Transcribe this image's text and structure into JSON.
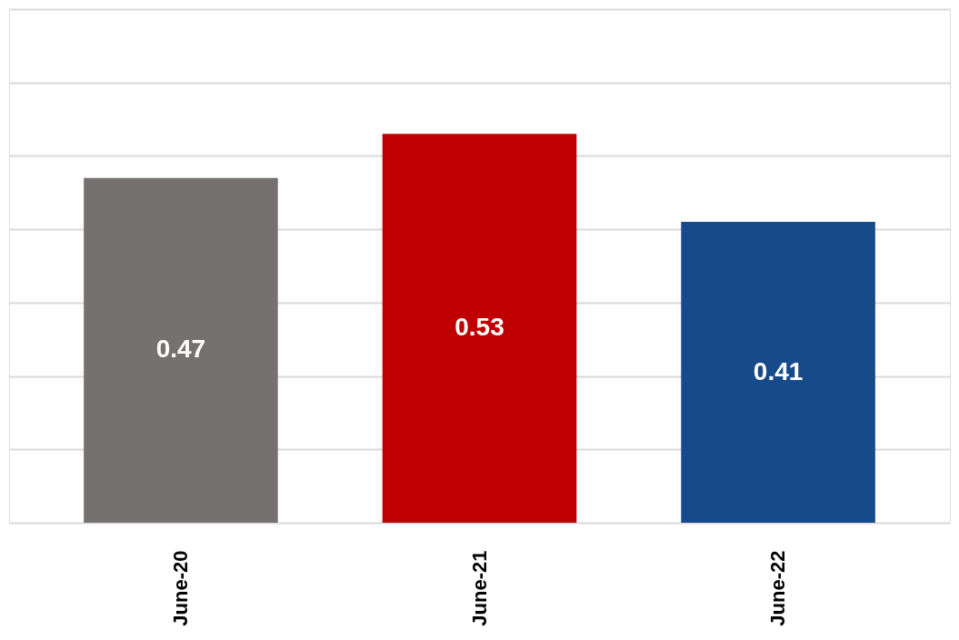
{
  "chart_data": {
    "type": "bar",
    "categories": [
      "June-20",
      "June-21",
      "June-22"
    ],
    "values": [
      0.47,
      0.53,
      0.41
    ],
    "colors": [
      "#767171",
      "#c00000",
      "#174a8b"
    ],
    "data_labels": true,
    "ylim": [
      0,
      0.7
    ],
    "yticks": [
      {
        "value": 0,
        "label": null
      },
      {
        "value": 0.1,
        "label": null
      },
      {
        "value": 0.2,
        "label": null
      },
      {
        "value": 0.3,
        "label": null
      },
      {
        "value": 0.4,
        "label": null
      },
      {
        "value": 0.5,
        "label": null
      },
      {
        "value": 0.6,
        "label": null
      },
      {
        "value": 0.7,
        "label": null
      }
    ],
    "tick_labels": "x",
    "grid": "y"
  }
}
